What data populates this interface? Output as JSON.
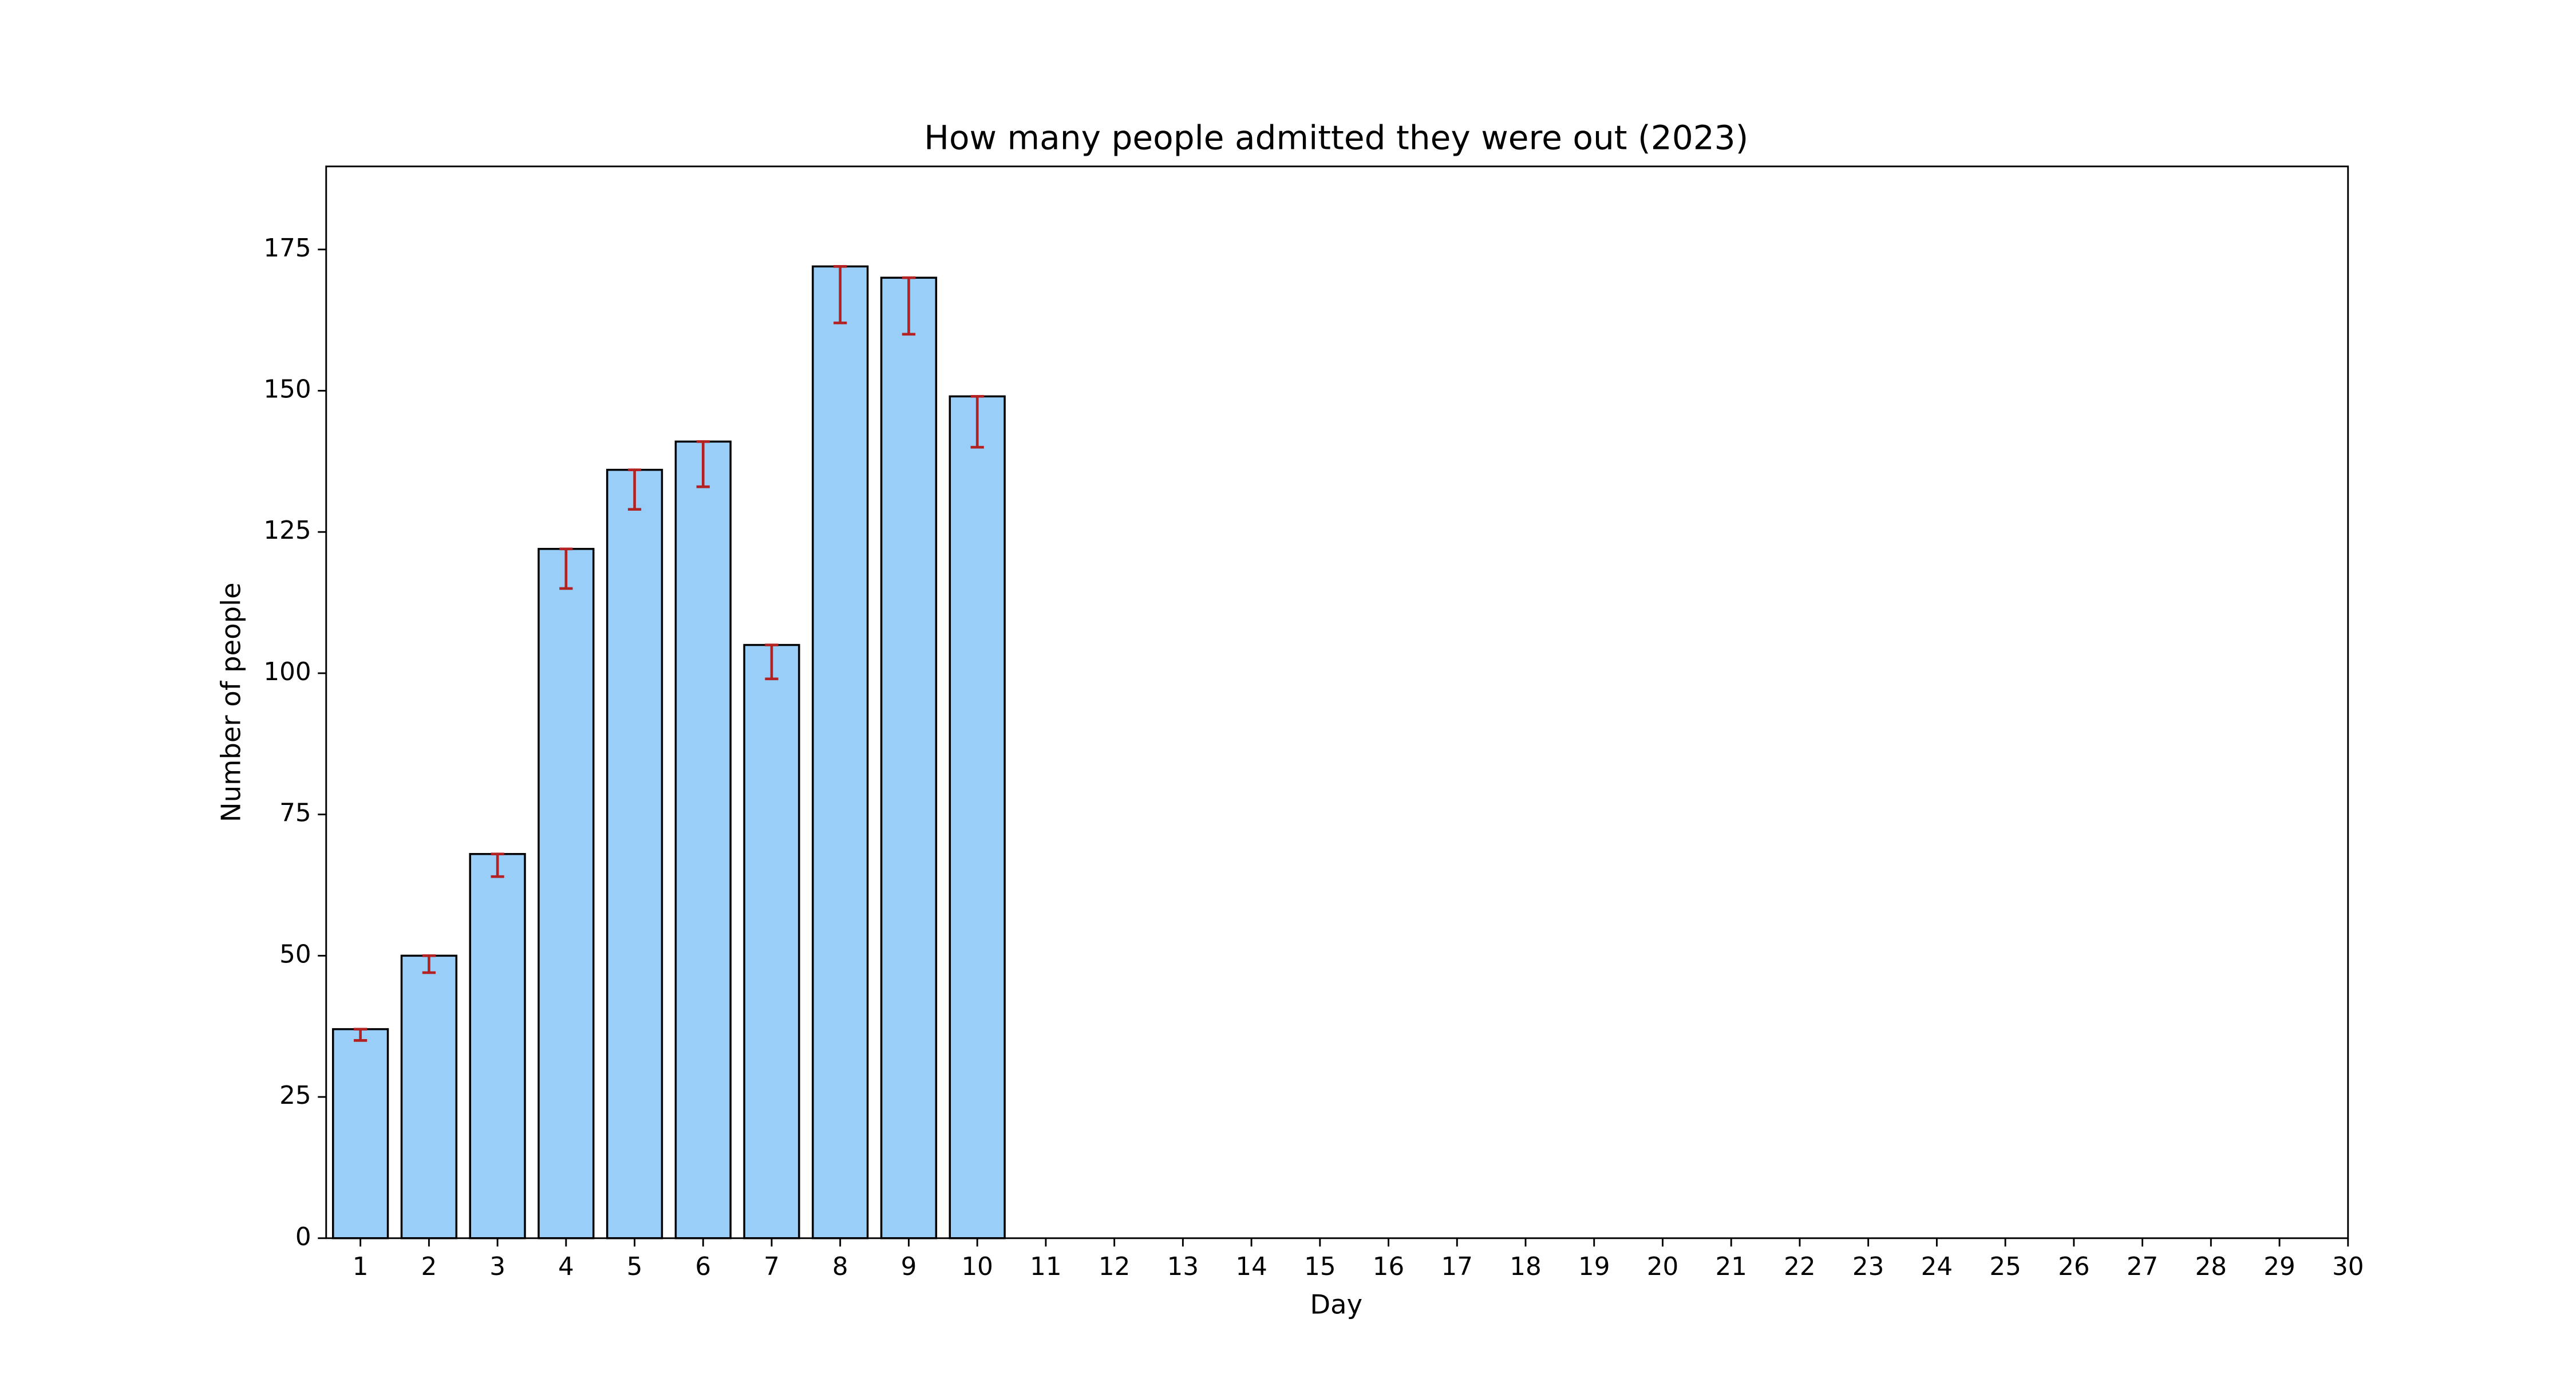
{
  "chart_data": {
    "type": "bar",
    "title": "How many people admitted they were out (2023)",
    "x_label": "Day",
    "y_label": "Number of people",
    "x": [
      1,
      2,
      3,
      4,
      5,
      6,
      7,
      8,
      9,
      10,
      11,
      12,
      13,
      14,
      15,
      16,
      17,
      18,
      19,
      20,
      21,
      22,
      23,
      24,
      25,
      26,
      27,
      28,
      29,
      30
    ],
    "values": [
      37,
      50,
      68,
      122,
      136,
      141,
      105,
      172,
      170,
      149,
      null,
      null,
      null,
      null,
      null,
      null,
      null,
      null,
      null,
      null,
      null,
      null,
      null,
      null,
      null,
      null,
      null,
      null,
      null,
      null
    ],
    "errors_lower": [
      2,
      3,
      4,
      7,
      7,
      8,
      6,
      10,
      10,
      9,
      null,
      null,
      null,
      null,
      null,
      null,
      null,
      null,
      null,
      null,
      null,
      null,
      null,
      null,
      null,
      null,
      null,
      null,
      null,
      null
    ],
    "color": "#99cef9",
    "error_color": "#b22222",
    "xlim": [
      0.5,
      30
    ],
    "xticks": [
      1,
      2,
      3,
      4,
      5,
      6,
      7,
      8,
      9,
      10,
      11,
      12,
      13,
      14,
      15,
      16,
      17,
      18,
      19,
      20,
      21,
      22,
      23,
      24,
      25,
      26,
      27,
      28,
      29,
      30
    ],
    "ylim": [
      0,
      189.7
    ],
    "yticks": [
      0,
      25,
      50,
      75,
      100,
      125,
      150,
      175
    ],
    "grid": false
  }
}
